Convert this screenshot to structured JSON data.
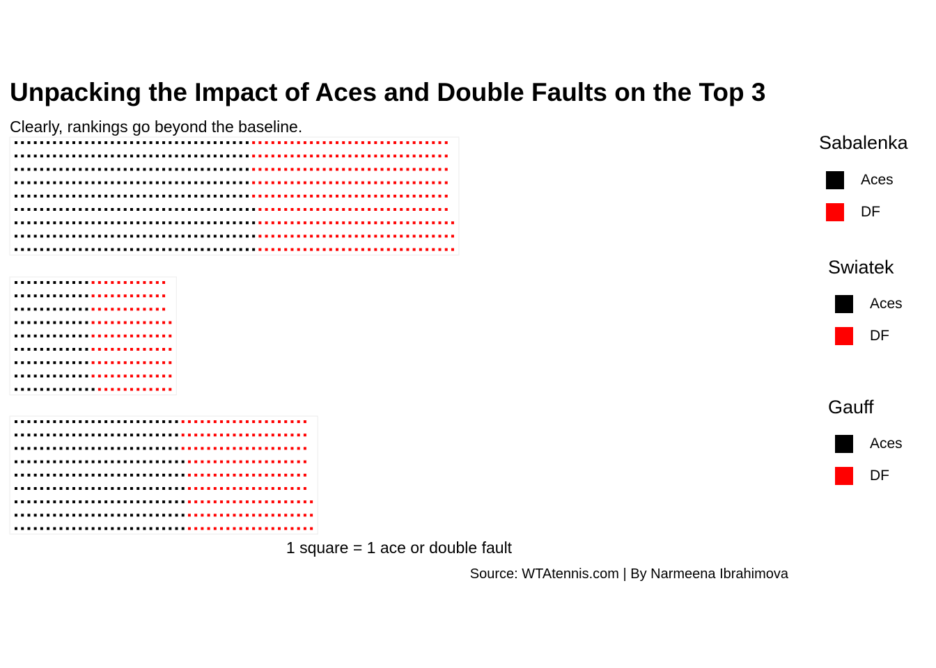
{
  "header": {
    "title": "Unpacking the Impact of Aces and Double Faults on the Top 3",
    "subtitle": "Clearly, rankings go beyond the baseline."
  },
  "footer": {
    "scale_note": "1 square = 1 ace or double fault",
    "source": "Source: WTAtennis.com | By Narmeena Ibrahimova"
  },
  "colors": {
    "aces": "#000000",
    "df": "#ff0000"
  },
  "chart_data": [
    {
      "type": "waffle",
      "player": "Sabalenka",
      "rows": 9,
      "categories": [
        "Aces",
        "DF"
      ],
      "values": [
        337,
        278
      ],
      "legend_title": "Sabalenka"
    },
    {
      "type": "waffle",
      "player": "Swiatek",
      "rows": 9,
      "categories": [
        "Aces",
        "DF"
      ],
      "values": [
        109,
        113
      ],
      "legend_title": "Swiatek"
    },
    {
      "type": "waffle",
      "player": "Gauff",
      "rows": 9,
      "categories": [
        "Aces",
        "DF"
      ],
      "values": [
        240,
        177
      ],
      "legend_title": "Gauff"
    }
  ],
  "legends": [
    {
      "title": "Sabalenka",
      "items": [
        {
          "label": "Aces",
          "color": "#000000"
        },
        {
          "label": "DF",
          "color": "#ff0000"
        }
      ]
    },
    {
      "title": "Swiatek",
      "items": [
        {
          "label": "Aces",
          "color": "#000000"
        },
        {
          "label": "DF",
          "color": "#ff0000"
        }
      ]
    },
    {
      "title": "Gauff",
      "items": [
        {
          "label": "Aces",
          "color": "#000000"
        },
        {
          "label": "DF",
          "color": "#ff0000"
        }
      ]
    }
  ]
}
